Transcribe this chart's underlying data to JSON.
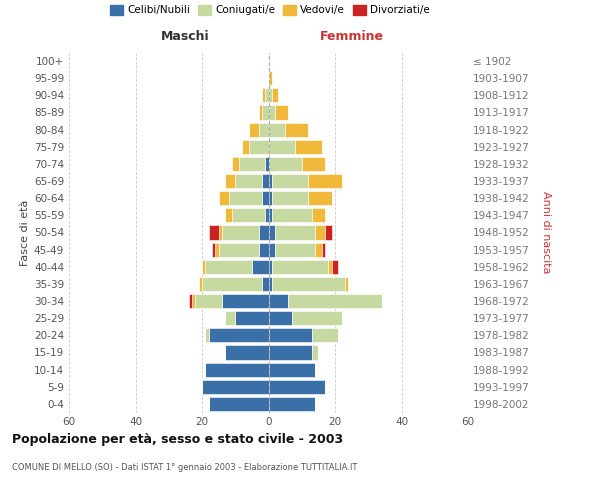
{
  "age_groups": [
    "0-4",
    "5-9",
    "10-14",
    "15-19",
    "20-24",
    "25-29",
    "30-34",
    "35-39",
    "40-44",
    "45-49",
    "50-54",
    "55-59",
    "60-64",
    "65-69",
    "70-74",
    "75-79",
    "80-84",
    "85-89",
    "90-94",
    "95-99",
    "100+"
  ],
  "birth_years": [
    "1998-2002",
    "1993-1997",
    "1988-1992",
    "1983-1987",
    "1978-1982",
    "1973-1977",
    "1968-1972",
    "1963-1967",
    "1958-1962",
    "1953-1957",
    "1948-1952",
    "1943-1947",
    "1938-1942",
    "1933-1937",
    "1928-1932",
    "1923-1927",
    "1918-1922",
    "1913-1917",
    "1908-1912",
    "1903-1907",
    "≤ 1902"
  ],
  "males": {
    "celibi": [
      18,
      20,
      19,
      13,
      18,
      10,
      14,
      2,
      5,
      3,
      3,
      1,
      2,
      2,
      1,
      0,
      0,
      0,
      0,
      0,
      0
    ],
    "coniugati": [
      0,
      0,
      0,
      0,
      1,
      3,
      8,
      18,
      14,
      12,
      11,
      10,
      10,
      8,
      8,
      6,
      3,
      2,
      1,
      0,
      0
    ],
    "vedovi": [
      0,
      0,
      0,
      0,
      0,
      0,
      1,
      1,
      1,
      1,
      1,
      2,
      3,
      3,
      2,
      2,
      3,
      1,
      1,
      0,
      0
    ],
    "divorziati": [
      0,
      0,
      0,
      0,
      0,
      0,
      1,
      0,
      0,
      1,
      3,
      0,
      0,
      0,
      0,
      0,
      0,
      0,
      0,
      0,
      0
    ]
  },
  "females": {
    "nubili": [
      14,
      17,
      14,
      13,
      13,
      7,
      6,
      1,
      1,
      2,
      2,
      1,
      1,
      1,
      0,
      0,
      0,
      0,
      0,
      0,
      0
    ],
    "coniugate": [
      0,
      0,
      0,
      2,
      8,
      15,
      28,
      22,
      17,
      12,
      12,
      12,
      11,
      11,
      10,
      8,
      5,
      2,
      1,
      0,
      0
    ],
    "vedove": [
      0,
      0,
      0,
      0,
      0,
      0,
      0,
      1,
      1,
      2,
      3,
      4,
      7,
      10,
      7,
      8,
      7,
      4,
      2,
      1,
      0
    ],
    "divorziate": [
      0,
      0,
      0,
      0,
      0,
      0,
      0,
      0,
      2,
      1,
      2,
      0,
      0,
      0,
      0,
      0,
      0,
      0,
      0,
      0,
      0
    ]
  },
  "colors": {
    "celibi": "#3a6fa8",
    "coniugati": "#c5d9a0",
    "vedovi": "#f0b93a",
    "divorziati": "#cc2222"
  },
  "xlim": [
    -60,
    60
  ],
  "title": "Popolazione per età, sesso e stato civile - 2003",
  "subtitle": "COMUNE DI MELLO (SO) - Dati ISTAT 1° gennaio 2003 - Elaborazione TUTTITALIA.IT",
  "ylabel_left": "Fasce di età",
  "ylabel_right": "Anni di nascita",
  "xlabel_maschi": "Maschi",
  "xlabel_femmine": "Femmine",
  "legend_labels": [
    "Celibi/Nubili",
    "Coniugati/e",
    "Vedovi/e",
    "Divorziati/e"
  ]
}
